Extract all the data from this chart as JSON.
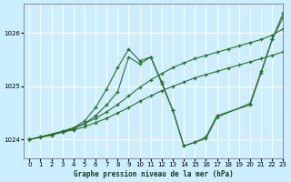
{
  "title": "Graphe pression niveau de la mer (hPa)",
  "bg_color": "#cceeff",
  "grid_color": "#ffffff",
  "line_color": "#2d6e2d",
  "xlim": [
    -0.5,
    23
  ],
  "ylim": [
    1023.65,
    1026.55
  ],
  "yticks": [
    1024,
    1025,
    1026
  ],
  "xticks": [
    0,
    1,
    2,
    3,
    4,
    5,
    6,
    7,
    8,
    9,
    10,
    11,
    12,
    13,
    14,
    15,
    16,
    17,
    18,
    19,
    20,
    21,
    22,
    23
  ],
  "series": [
    {
      "x": [
        0,
        1,
        2,
        3,
        4,
        5,
        6,
        7,
        8,
        9,
        10,
        11,
        12,
        13,
        14,
        15,
        16,
        17,
        18,
        19,
        20,
        21,
        22,
        23
      ],
      "y": [
        1024.0,
        1024.04,
        1024.08,
        1024.14,
        1024.18,
        1024.24,
        1024.32,
        1024.4,
        1024.5,
        1024.6,
        1024.72,
        1024.82,
        1024.92,
        1025.0,
        1025.08,
        1025.16,
        1025.22,
        1025.28,
        1025.34,
        1025.4,
        1025.46,
        1025.52,
        1025.58,
        1025.65
      ]
    },
    {
      "x": [
        0,
        1,
        2,
        3,
        4,
        5,
        6,
        7,
        8,
        9,
        10,
        11,
        12,
        13,
        14,
        15,
        16,
        17,
        18,
        19,
        20,
        21,
        22,
        23
      ],
      "y": [
        1024.0,
        1024.05,
        1024.1,
        1024.16,
        1024.22,
        1024.3,
        1024.4,
        1024.52,
        1024.66,
        1024.82,
        1024.98,
        1025.12,
        1025.24,
        1025.35,
        1025.44,
        1025.52,
        1025.58,
        1025.64,
        1025.7,
        1025.76,
        1025.82,
        1025.88,
        1025.96,
        1026.08
      ]
    },
    {
      "x": [
        0,
        3,
        4,
        5,
        6,
        7,
        8,
        9,
        10,
        11,
        12,
        13,
        14,
        15,
        16,
        17,
        20,
        21,
        22,
        23
      ],
      "y": [
        1024.0,
        1024.15,
        1024.22,
        1024.35,
        1024.6,
        1024.95,
        1025.35,
        1025.7,
        1025.48,
        1025.55,
        1025.05,
        1024.55,
        1023.88,
        1023.95,
        1024.02,
        1024.42,
        1024.68,
        1025.28,
        1025.88,
        1026.3
      ]
    },
    {
      "x": [
        0,
        1,
        2,
        3,
        4,
        5,
        6,
        7,
        8,
        9,
        10,
        11,
        12,
        13,
        14,
        15,
        16,
        17,
        20,
        21,
        22,
        23
      ],
      "y": [
        1024.0,
        1024.05,
        1024.1,
        1024.15,
        1024.2,
        1024.3,
        1024.45,
        1024.65,
        1024.9,
        1025.55,
        1025.42,
        1025.55,
        1025.08,
        1024.55,
        1023.88,
        1023.95,
        1024.05,
        1024.45,
        1024.65,
        1025.25,
        1025.88,
        1026.38
      ]
    }
  ]
}
